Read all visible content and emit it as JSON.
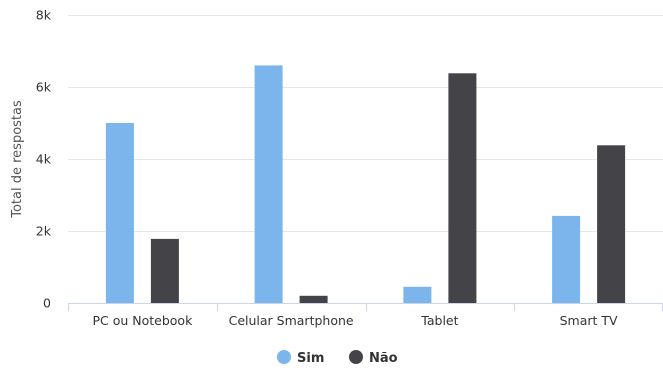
{
  "chart_data": {
    "type": "bar",
    "ylabel": "Total de respostas",
    "xlabel": "",
    "categories": [
      "PC ou Notebook",
      "Celular Smartphone",
      "Tablet",
      "Smart TV"
    ],
    "series": [
      {
        "name": "Sim",
        "color": "#7cb5ec",
        "values": [
          5000,
          6600,
          450,
          2420
        ]
      },
      {
        "name": "Não",
        "color": "#434348",
        "values": [
          1780,
          200,
          6380,
          4380
        ]
      }
    ],
    "ylim": [
      0,
      8000
    ],
    "yticks": [
      0,
      2000,
      4000,
      6000,
      8000
    ],
    "ytick_labels": [
      "0",
      "2k",
      "4k",
      "6k",
      "8k"
    ],
    "grid": true,
    "legend_position": "bottom-center"
  }
}
